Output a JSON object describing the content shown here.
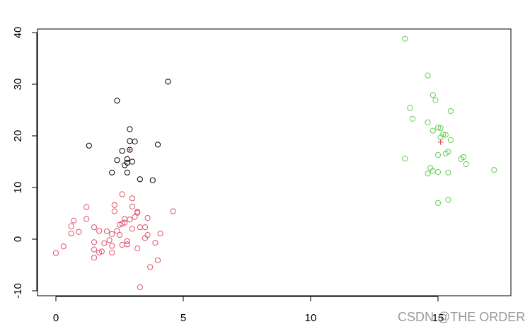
{
  "chart_data": {
    "type": "scatter",
    "title": "",
    "xlabel": "",
    "ylabel": "",
    "xlim": [
      -1.5,
      18
    ],
    "ylim": [
      -12,
      41
    ],
    "grid": false,
    "xticks": [
      0,
      5,
      10,
      15
    ],
    "yticks": [
      -10,
      0,
      10,
      20,
      30,
      40
    ],
    "series": [
      {
        "color": "#000000",
        "marker": "circle-open",
        "points": [
          [
            2.4,
            26.8
          ],
          [
            4.4,
            30.5
          ],
          [
            1.3,
            18.1
          ],
          [
            4.0,
            18.3
          ],
          [
            2.9,
            21.3
          ],
          [
            3.1,
            18.9
          ],
          [
            2.9,
            19.0
          ],
          [
            2.6,
            17.1
          ],
          [
            2.4,
            15.3
          ],
          [
            2.8,
            15.5
          ],
          [
            3.0,
            15.0
          ],
          [
            2.8,
            14.8
          ],
          [
            2.7,
            14.3
          ],
          [
            2.2,
            12.9
          ],
          [
            2.8,
            12.9
          ],
          [
            3.3,
            11.6
          ],
          [
            3.8,
            11.4
          ],
          [
            2.9,
            17.3
          ]
        ]
      },
      {
        "color": "#df536b",
        "marker": "circle-open",
        "points": [
          [
            0.0,
            -2.7
          ],
          [
            0.3,
            -1.4
          ],
          [
            0.6,
            2.5
          ],
          [
            0.7,
            3.6
          ],
          [
            0.6,
            1.1
          ],
          [
            0.9,
            1.4
          ],
          [
            1.2,
            6.2
          ],
          [
            1.2,
            3.9
          ],
          [
            1.5,
            2.3
          ],
          [
            1.7,
            1.6
          ],
          [
            1.5,
            -0.6
          ],
          [
            1.5,
            -2.0
          ],
          [
            1.5,
            -3.6
          ],
          [
            1.7,
            -2.6
          ],
          [
            1.8,
            -2.4
          ],
          [
            1.9,
            -0.8
          ],
          [
            2.0,
            1.5
          ],
          [
            2.1,
            -0.2
          ],
          [
            2.2,
            -1.3
          ],
          [
            2.2,
            1.0
          ],
          [
            2.2,
            -2.6
          ],
          [
            2.3,
            6.6
          ],
          [
            2.3,
            5.4
          ],
          [
            2.4,
            1.6
          ],
          [
            2.5,
            0.8
          ],
          [
            2.5,
            2.8
          ],
          [
            2.6,
            8.7
          ],
          [
            2.6,
            3.0
          ],
          [
            2.6,
            -1.1
          ],
          [
            2.7,
            3.2
          ],
          [
            2.7,
            3.9
          ],
          [
            2.8,
            -0.4
          ],
          [
            2.8,
            -1.0
          ],
          [
            2.9,
            3.8
          ],
          [
            3.0,
            2.0
          ],
          [
            3.0,
            6.3
          ],
          [
            3.0,
            7.9
          ],
          [
            3.1,
            4.3
          ],
          [
            3.2,
            5.1
          ],
          [
            3.2,
            5.3
          ],
          [
            3.2,
            -1.8
          ],
          [
            3.3,
            2.3
          ],
          [
            3.3,
            -9.3
          ],
          [
            3.5,
            2.3
          ],
          [
            3.5,
            0.2
          ],
          [
            3.6,
            4.1
          ],
          [
            3.6,
            0.8
          ],
          [
            3.7,
            -5.4
          ],
          [
            3.9,
            -0.7
          ],
          [
            4.0,
            -4.1
          ],
          [
            4.1,
            1.1
          ],
          [
            4.6,
            5.4
          ]
        ]
      },
      {
        "color": "#61d04f",
        "marker": "circle-open",
        "points": [
          [
            13.7,
            38.8
          ],
          [
            14.6,
            31.7
          ],
          [
            13.9,
            25.4
          ],
          [
            14.0,
            23.3
          ],
          [
            14.8,
            27.9
          ],
          [
            14.9,
            26.9
          ],
          [
            15.5,
            24.8
          ],
          [
            14.6,
            22.6
          ],
          [
            14.8,
            21.0
          ],
          [
            15.0,
            21.6
          ],
          [
            15.1,
            21.5
          ],
          [
            15.2,
            20.3
          ],
          [
            15.1,
            19.7
          ],
          [
            15.3,
            20.2
          ],
          [
            15.5,
            19.2
          ],
          [
            15.4,
            16.9
          ],
          [
            15.3,
            16.6
          ],
          [
            15.0,
            16.3
          ],
          [
            15.9,
            15.5
          ],
          [
            16.0,
            15.9
          ],
          [
            16.1,
            14.5
          ],
          [
            13.7,
            15.6
          ],
          [
            14.6,
            12.7
          ],
          [
            14.7,
            13.8
          ],
          [
            14.8,
            13.2
          ],
          [
            15.0,
            13.0
          ],
          [
            15.4,
            12.9
          ],
          [
            15.0,
            7.0
          ],
          [
            15.4,
            7.6
          ],
          [
            17.2,
            13.4
          ]
        ]
      }
    ],
    "centroids": [
      {
        "color": "#df536b",
        "marker": "plus",
        "point": [
          2.9,
          17.3
        ]
      },
      {
        "color": "#df536b",
        "marker": "plus",
        "point": [
          15.1,
          18.8
        ]
      }
    ]
  },
  "watermark": "CSDN @THE ORDER"
}
